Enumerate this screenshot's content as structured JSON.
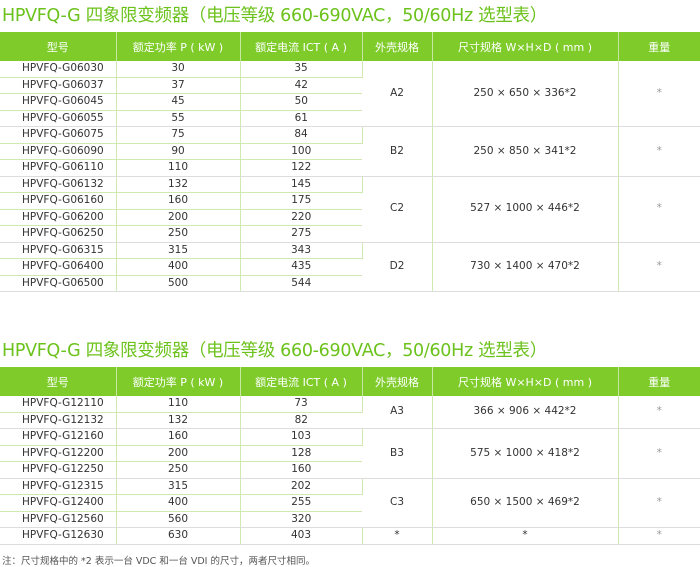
{
  "headers": [
    "型号",
    "额定功率 P ( kW )",
    "额定电流  ICT ( A )",
    "外壳规格",
    "尺寸规格 W×H×D ( mm )",
    "重量"
  ],
  "table1": {
    "title": "HPVFQ-G 四象限变频器（电压等级 660-690VAC，50/60Hz  选型表）",
    "rows": [
      [
        "HPVFQ-G06030",
        "30",
        "35"
      ],
      [
        "HPVFQ-G06037",
        "37",
        "42"
      ],
      [
        "HPVFQ-G06045",
        "45",
        "50"
      ],
      [
        "HPVFQ-G06055",
        "55",
        "61"
      ],
      [
        "HPVFQ-G06075",
        "75",
        "84"
      ],
      [
        "HPVFQ-G06090",
        "90",
        "100"
      ],
      [
        "HPVFQ-G06110",
        "110",
        "122"
      ],
      [
        "HPVFQ-G06132",
        "132",
        "145"
      ],
      [
        "HPVFQ-G06160",
        "160",
        "175"
      ],
      [
        "HPVFQ-G06200",
        "200",
        "220"
      ],
      [
        "HPVFQ-G06250",
        "250",
        "275"
      ],
      [
        "HPVFQ-G06315",
        "315",
        "343"
      ],
      [
        "HPVFQ-G06400",
        "400",
        "435"
      ],
      [
        "HPVFQ-G06500",
        "500",
        "544"
      ]
    ],
    "groups": [
      [
        "A2",
        "250 × 650 × 336*2",
        "*"
      ],
      [
        "B2",
        "250 × 850 × 341*2",
        "*"
      ],
      [
        "C2",
        "527 × 1000 × 446*2",
        "*"
      ],
      [
        "D2",
        "730 × 1400 × 470*2",
        "*"
      ]
    ]
  },
  "table2": {
    "title": "HPVFQ-G 四象限变频器（电压等级 660-690VAC，50/60Hz  选型表）",
    "rows": [
      [
        "HPVFQ-G12110",
        "110",
        "73"
      ],
      [
        "HPVFQ-G12132",
        "132",
        "82"
      ],
      [
        "HPVFQ-G12160",
        "160",
        "103"
      ],
      [
        "HPVFQ-G12200",
        "200",
        "128"
      ],
      [
        "HPVFQ-G12250",
        "250",
        "160"
      ],
      [
        "HPVFQ-G12315",
        "315",
        "202"
      ],
      [
        "HPVFQ-G12400",
        "400",
        "255"
      ],
      [
        "HPVFQ-G12560",
        "560",
        "320"
      ],
      [
        "HPVFQ-G12630",
        "630",
        "403"
      ]
    ],
    "groups": [
      [
        "A3",
        "366 × 906 × 442*2",
        "*"
      ],
      [
        "B3",
        "575 × 1000 × 418*2",
        "*"
      ],
      [
        "C3",
        "650 × 1500 × 469*2",
        "*"
      ],
      [
        "*",
        "*",
        "*"
      ]
    ]
  },
  "note": "注：尺寸规格中的 *2 表示一台 VDC 和一台 VDI 的尺寸，两者尺寸相同。"
}
